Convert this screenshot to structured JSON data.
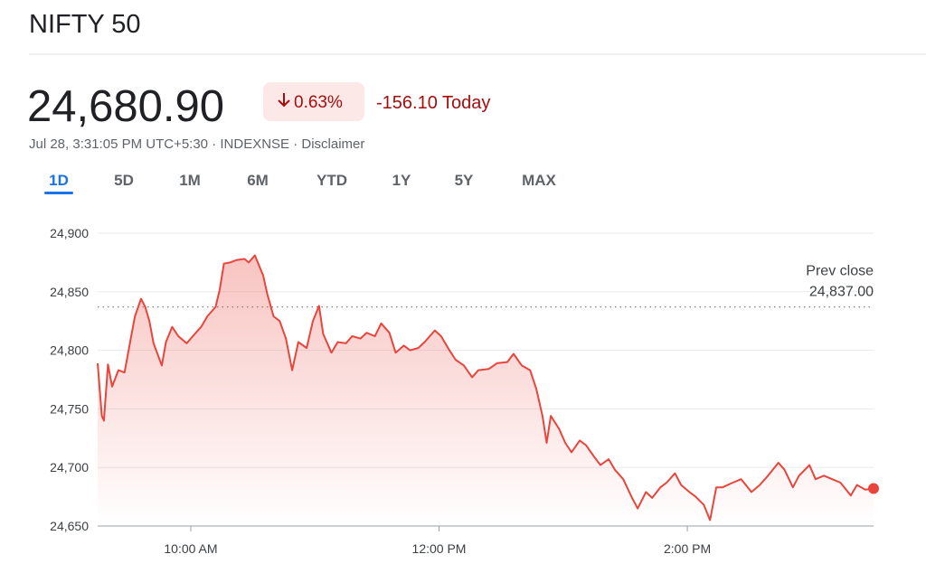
{
  "header": {
    "title": "NIFTY 50"
  },
  "quote": {
    "price": "24,680.90",
    "change_pct": "0.63%",
    "change": "-156.10 Today",
    "meta": "Jul 28, 3:31:05 PM UTC+5:30 · INDEXNSE · Disclaimer"
  },
  "tabs": {
    "items": [
      "1D",
      "5D",
      "1M",
      "6M",
      "YTD",
      "1Y",
      "5Y",
      "MAX"
    ],
    "active": 0
  },
  "chart_data": {
    "type": "line",
    "color": "#e8453c",
    "x": [
      555,
      557,
      558,
      560,
      562,
      565,
      568,
      571,
      573,
      576,
      578,
      580,
      582,
      586,
      588,
      591,
      594,
      598,
      601,
      605,
      608,
      612,
      614,
      616,
      619,
      622,
      626,
      628,
      631,
      635,
      637,
      640,
      643,
      646,
      649,
      652,
      656,
      659,
      662,
      664,
      668,
      671,
      675,
      678,
      682,
      685,
      689,
      692,
      696,
      699,
      703,
      706,
      710,
      713,
      718,
      721,
      725,
      728,
      732,
      736,
      739,
      744,
      748,
      753,
      756,
      760,
      764,
      767,
      770,
      772,
      774,
      778,
      781,
      784,
      788,
      791,
      795,
      798,
      802,
      805,
      809,
      813,
      816,
      820,
      823,
      827,
      830,
      834,
      837,
      841,
      844,
      848,
      851,
      854,
      857,
      862,
      866,
      871,
      875,
      879,
      884,
      887,
      891,
      894,
      899,
      902,
      906,
      910,
      914,
      919,
      922,
      926,
      930
    ],
    "values": [
      24789,
      24744,
      24740,
      24788,
      24769,
      24783,
      24781,
      24810,
      24829,
      24844,
      24837,
      24825,
      24806,
      24787,
      24807,
      24820,
      24812,
      24806,
      24812,
      24820,
      24829,
      24837,
      24852,
      24874,
      24875,
      24877,
      24878,
      24875,
      24881,
      24864,
      24848,
      24829,
      24825,
      24810,
      24783,
      24807,
      24802,
      24825,
      24838,
      24814,
      24798,
      24807,
      24806,
      24812,
      24810,
      24815,
      24812,
      24823,
      24815,
      24798,
      24804,
      24800,
      24802,
      24807,
      24817,
      24812,
      24800,
      24792,
      24787,
      24777,
      24783,
      24784,
      24789,
      24790,
      24797,
      24787,
      24783,
      24767,
      24744,
      24721,
      24744,
      24733,
      24721,
      24713,
      24723,
      24719,
      24709,
      24702,
      24707,
      24698,
      24690,
      24675,
      24665,
      24679,
      24674,
      24683,
      24687,
      24695,
      24685,
      24679,
      24675,
      24668,
      24655,
      24683,
      24683,
      24687,
      24690,
      24679,
      24685,
      24693,
      24704,
      24698,
      24683,
      24693,
      24702,
      24690,
      24693,
      24690,
      24687,
      24676,
      24685,
      24681,
      24682
    ],
    "xlim": [
      555,
      930
    ],
    "xticks": [
      {
        "value": 600,
        "label": "10:00 AM"
      },
      {
        "value": 720,
        "label": "12:00 PM"
      },
      {
        "value": 840,
        "label": "2:00 PM"
      }
    ],
    "ylim": [
      24650,
      24900
    ],
    "yticks": [
      {
        "value": 24650,
        "label": "24,650"
      },
      {
        "value": 24700,
        "label": "24,700"
      },
      {
        "value": 24750,
        "label": "24,750"
      },
      {
        "value": 24800,
        "label": "24,800"
      },
      {
        "value": 24850,
        "label": "24,850"
      },
      {
        "value": 24900,
        "label": "24,900"
      }
    ],
    "grid": true,
    "reference": {
      "label": "Prev close",
      "value": 24837,
      "value_label": "24,837.00"
    }
  }
}
